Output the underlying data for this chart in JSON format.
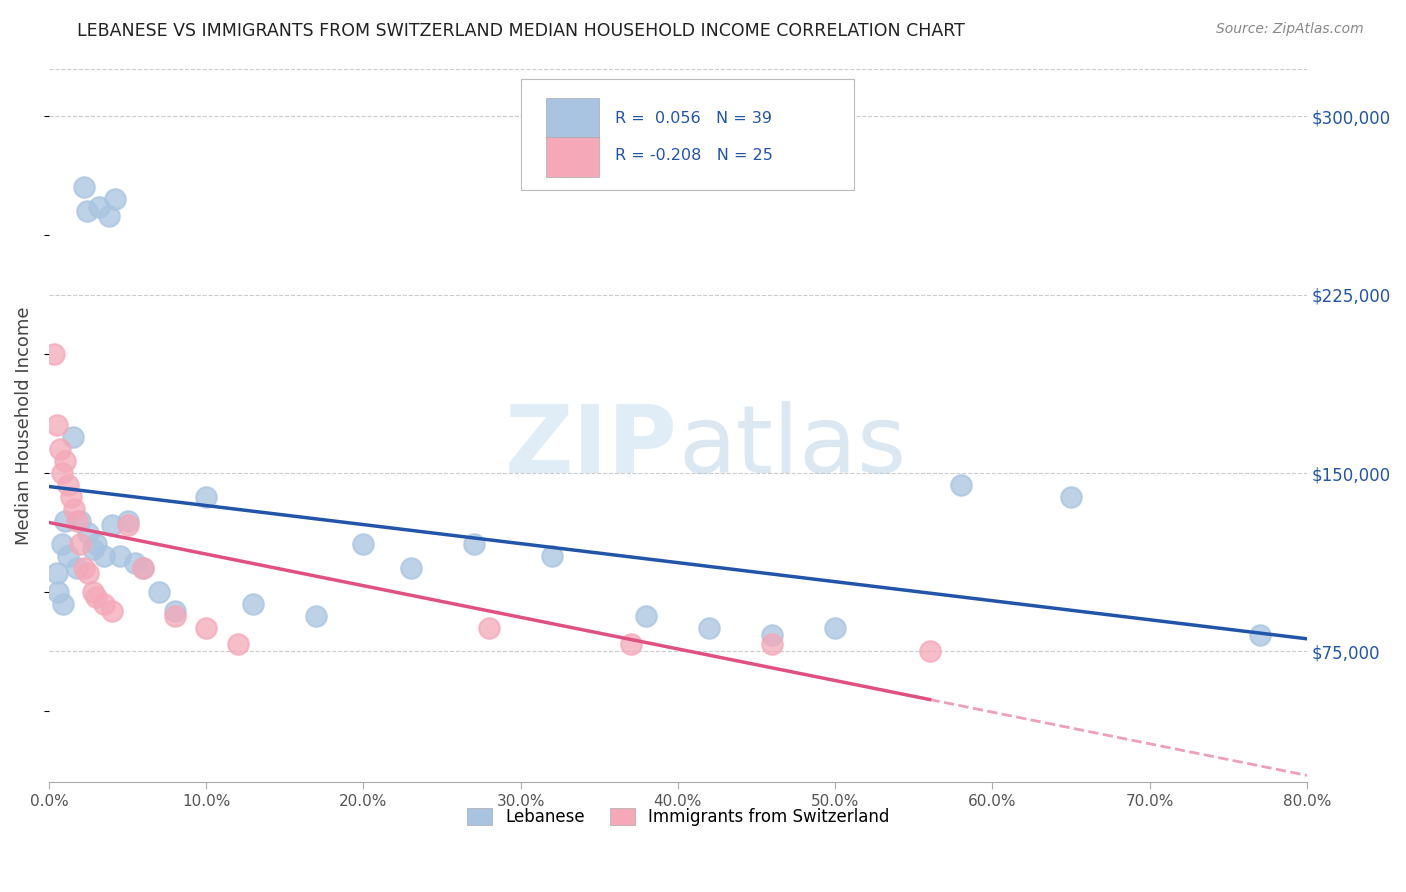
{
  "title": "LEBANESE VS IMMIGRANTS FROM SWITZERLAND MEDIAN HOUSEHOLD INCOME CORRELATION CHART",
  "source": "Source: ZipAtlas.com",
  "ylabel": "Median Household Income",
  "y_ticks": [
    75000,
    150000,
    225000,
    300000
  ],
  "y_tick_labels": [
    "$75,000",
    "$150,000",
    "$225,000",
    "$300,000"
  ],
  "x_min": 0.0,
  "x_max": 0.8,
  "y_min": 20000,
  "y_max": 320000,
  "legend_labels": [
    "Lebanese",
    "Immigrants from Switzerland"
  ],
  "R_blue": 0.056,
  "N_blue": 39,
  "R_pink": -0.208,
  "N_pink": 25,
  "blue_color": "#a8c4e0",
  "pink_color": "#f4a8b8",
  "blue_line_color": "#2255aa",
  "pink_line_color": "#e05080",
  "blue_scatter_x": [
    0.022,
    0.024,
    0.032,
    0.038,
    0.042,
    0.008,
    0.01,
    0.012,
    0.015,
    0.018,
    0.02,
    0.025,
    0.028,
    0.03,
    0.035,
    0.04,
    0.045,
    0.05,
    0.055,
    0.06,
    0.07,
    0.08,
    0.1,
    0.13,
    0.17,
    0.2,
    0.23,
    0.27,
    0.32,
    0.38,
    0.42,
    0.46,
    0.5,
    0.58,
    0.005,
    0.006,
    0.009,
    0.65,
    0.77
  ],
  "blue_scatter_y": [
    270000,
    260000,
    262000,
    258000,
    265000,
    120000,
    130000,
    115000,
    165000,
    110000,
    130000,
    125000,
    118000,
    120000,
    115000,
    128000,
    115000,
    130000,
    112000,
    110000,
    100000,
    92000,
    140000,
    95000,
    90000,
    120000,
    110000,
    120000,
    115000,
    90000,
    85000,
    82000,
    85000,
    145000,
    108000,
    100000,
    95000,
    140000,
    82000
  ],
  "pink_scatter_x": [
    0.003,
    0.005,
    0.007,
    0.008,
    0.01,
    0.012,
    0.014,
    0.016,
    0.018,
    0.02,
    0.022,
    0.025,
    0.028,
    0.03,
    0.035,
    0.04,
    0.05,
    0.06,
    0.08,
    0.1,
    0.12,
    0.28,
    0.37,
    0.46,
    0.56
  ],
  "pink_scatter_y": [
    200000,
    170000,
    160000,
    150000,
    155000,
    145000,
    140000,
    135000,
    130000,
    120000,
    110000,
    108000,
    100000,
    98000,
    95000,
    92000,
    128000,
    110000,
    90000,
    85000,
    78000,
    85000,
    78000,
    78000,
    75000
  ],
  "watermark_zip": "ZIP",
  "watermark_atlas": "atlas",
  "background_color": "#ffffff",
  "grid_color": "#cccccc"
}
